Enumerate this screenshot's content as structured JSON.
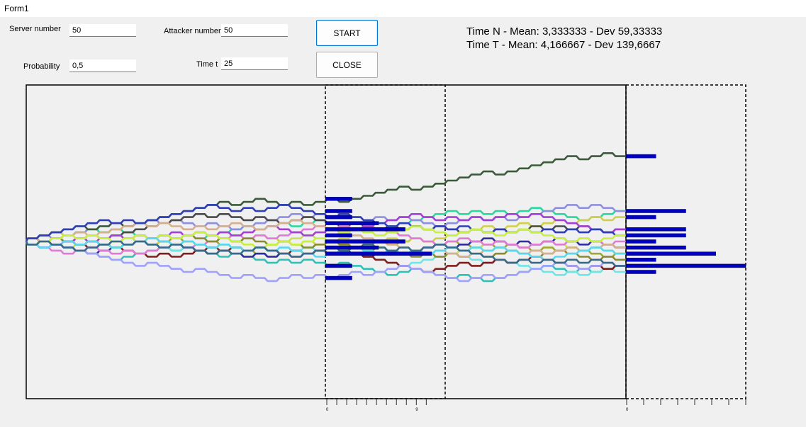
{
  "window": {
    "title": "Form1"
  },
  "form": {
    "server_label": "Server number",
    "server_value": "50",
    "attacker_label": "Attacker number",
    "attacker_value": "50",
    "probability_label": "Probability",
    "probability_value": "0,5",
    "time_label": "Time t",
    "time_value": "25",
    "start_label": "START",
    "close_label": "CLOSE"
  },
  "stats": {
    "line_n": "Time N - Mean: 3,333333 - Dev 59,33333",
    "line_t": "Time T - Mean: 4,166667 - Dev 139,6667"
  },
  "chart_data": {
    "type": "line",
    "title": "",
    "xlabel": "",
    "ylabel": "",
    "steps": 50,
    "num_paths": 20,
    "path_colors": [
      "#9fa82e",
      "#26d9a0",
      "#c8e05a",
      "#8f8fe0",
      "#30c0b8",
      "#6fe6e6",
      "#2f2f9f",
      "#7f1f1f",
      "#a0a0ff",
      "#d0d048",
      "#4a4a4a",
      "#e07ad6",
      "#3a5a3a",
      "#8a8a30",
      "#a43fd8",
      "#d4b090",
      "#2f3fb8",
      "#c8f040",
      "#56d8f0",
      "#3a6a8a"
    ],
    "histograms": [
      {
        "name": "time-n",
        "tick_labels": [
          "0",
          "9"
        ],
        "tick_count": 11
      },
      {
        "name": "time-t",
        "tick_labels": [
          "0"
        ],
        "tick_count": 8
      }
    ],
    "histogram_bar_color": "#0000c0"
  }
}
